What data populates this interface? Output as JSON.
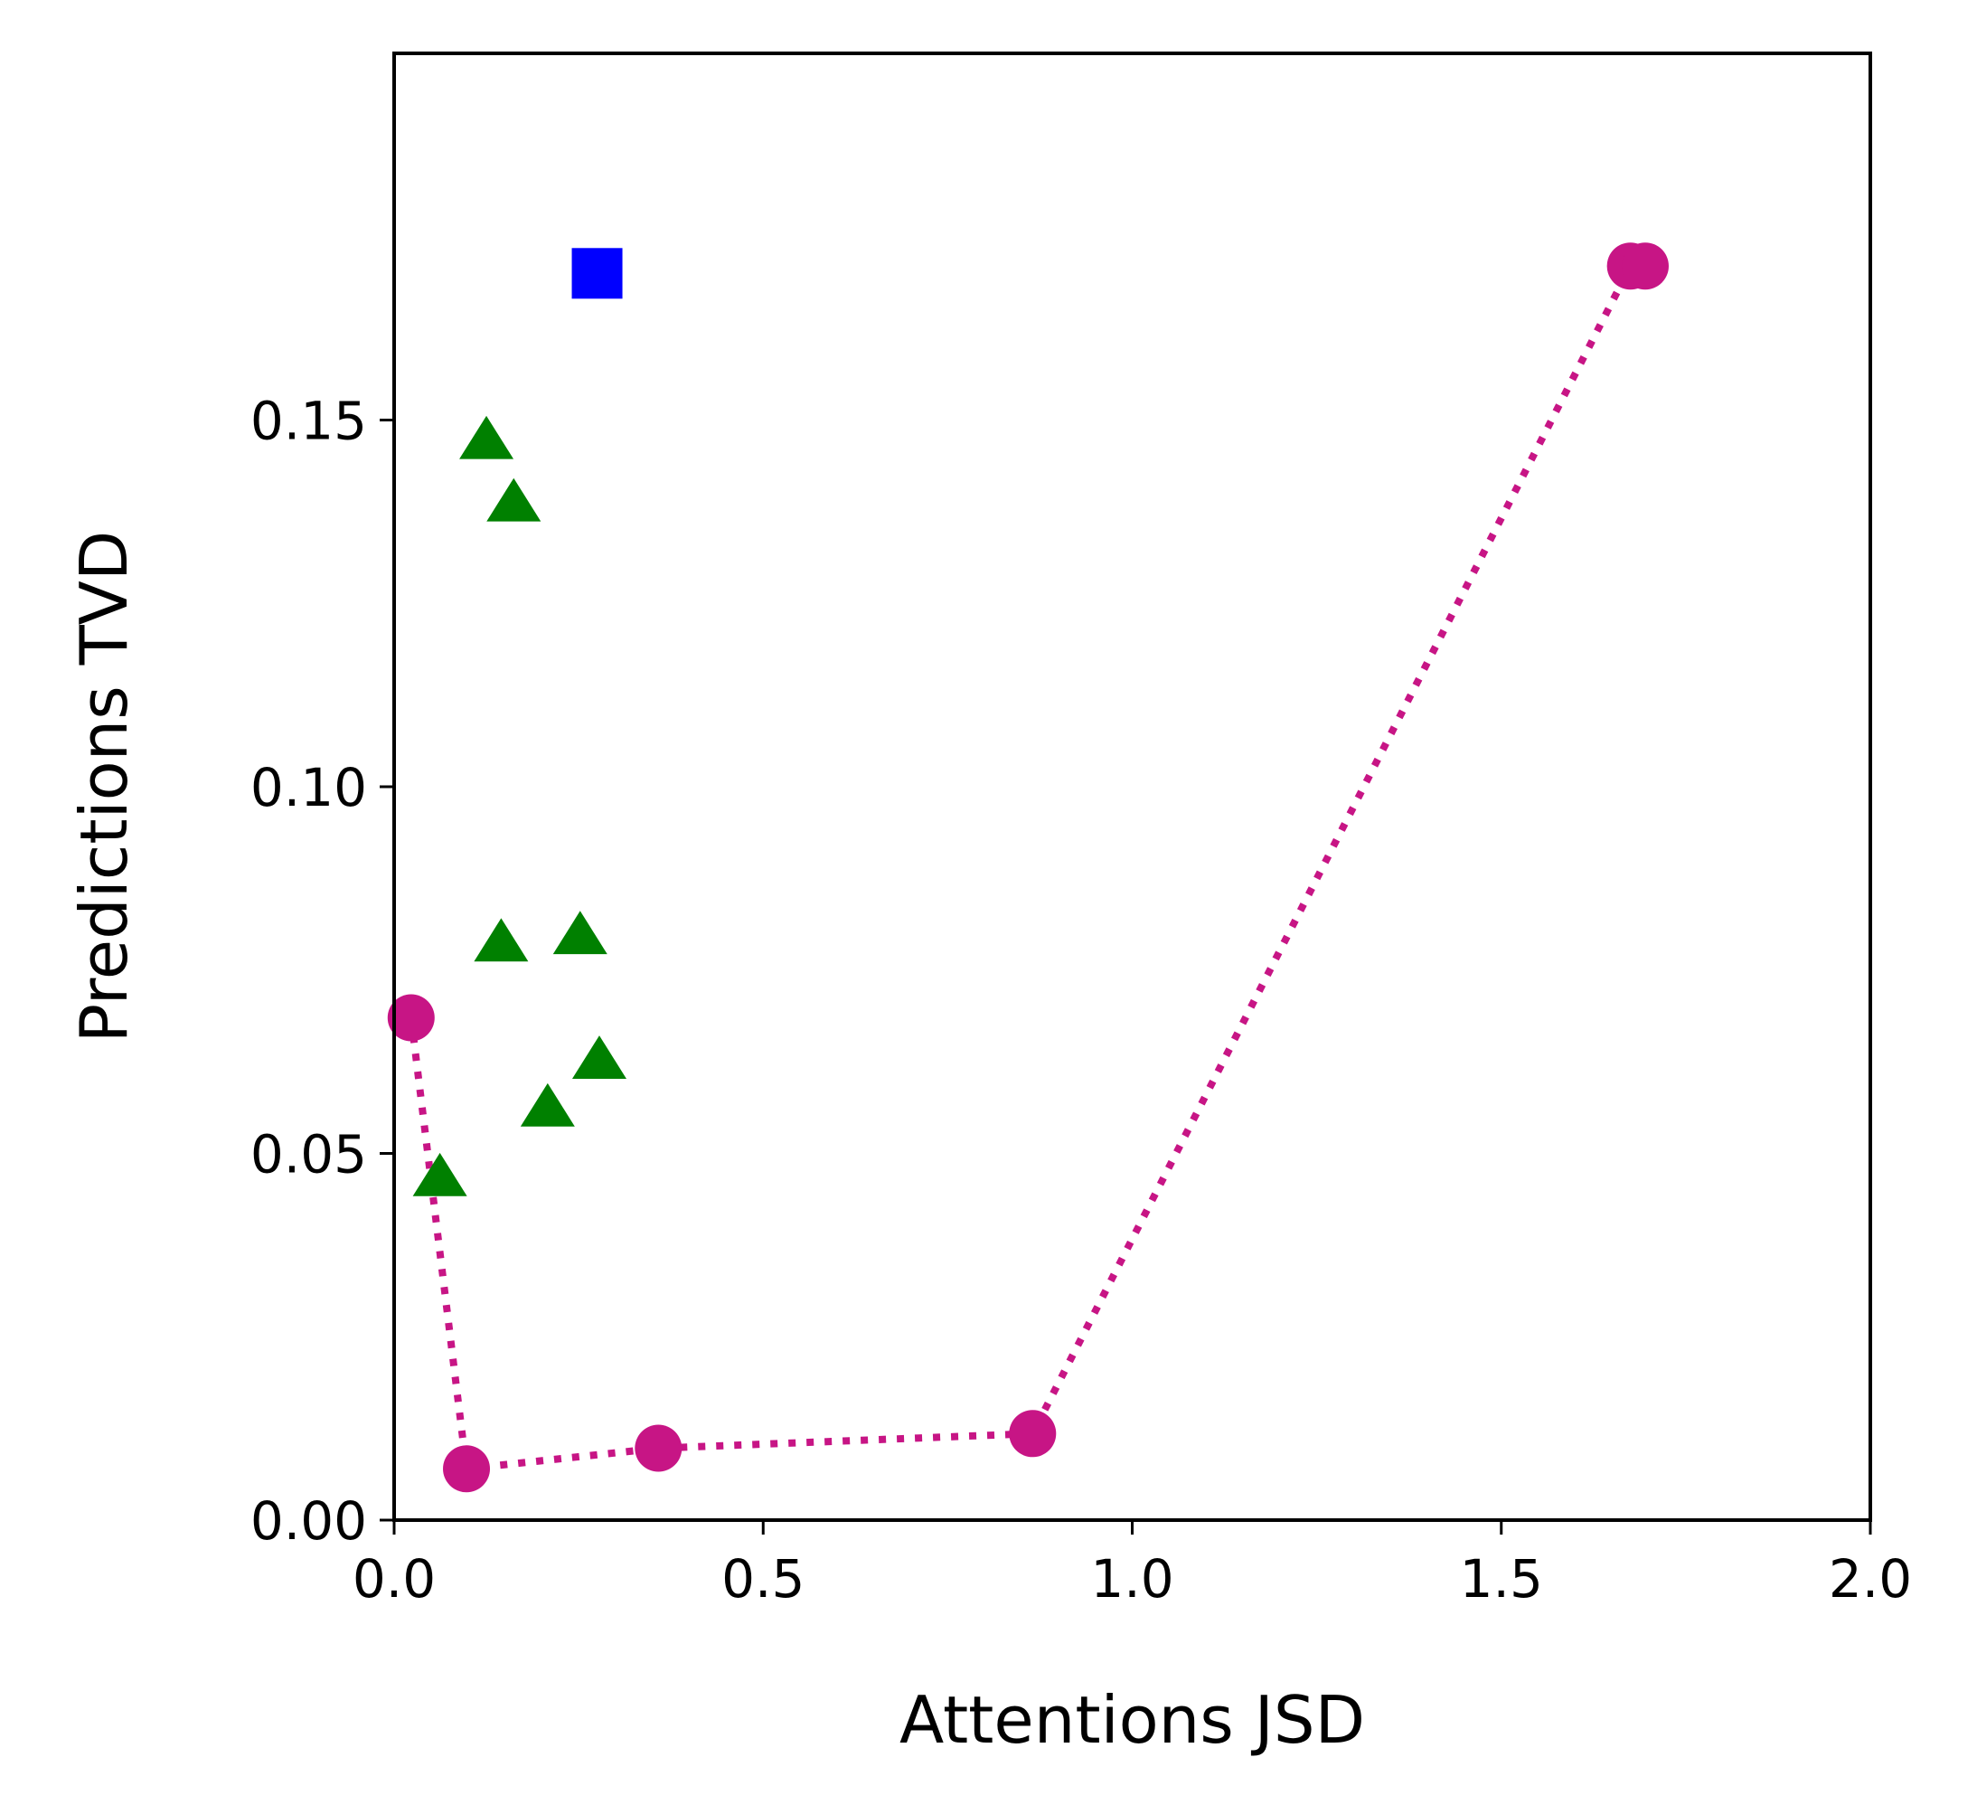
{
  "chart_data": {
    "type": "scatter",
    "title": "",
    "xlabel": "Attentions JSD",
    "ylabel": "Predictions TVD",
    "xlim": [
      0.0,
      2.0
    ],
    "ylim": [
      0.0,
      0.2
    ],
    "grid": false,
    "legend": null,
    "xticks": [
      0.0,
      0.5,
      1.0,
      1.5,
      2.0
    ],
    "xtick_labels": [
      "0.0",
      "0.5",
      "1.0",
      "1.5",
      "2.0"
    ],
    "yticks": [
      0.0,
      0.05,
      0.1,
      0.15
    ],
    "ytick_labels": [
      "0.00",
      "0.05",
      "0.10",
      "0.15"
    ],
    "series": [
      {
        "name": "path",
        "marker": "circle",
        "color": "#c71585",
        "line": "dotted",
        "x": [
          0.023,
          0.098,
          0.358,
          0.865,
          1.675,
          1.695
        ],
        "y": [
          0.0685,
          0.007,
          0.0098,
          0.0118,
          0.171,
          0.171
        ]
      },
      {
        "name": "triangles",
        "marker": "triangle",
        "color": "#008000",
        "line": "none",
        "x": [
          0.125,
          0.162,
          0.145,
          0.252,
          0.278,
          0.208,
          0.062
        ],
        "y": [
          0.147,
          0.1385,
          0.0785,
          0.0795,
          0.0625,
          0.056,
          0.0465
        ]
      },
      {
        "name": "square",
        "marker": "square",
        "color": "#0000ff",
        "line": "none",
        "x": [
          0.275
        ],
        "y": [
          0.17
        ]
      }
    ]
  }
}
